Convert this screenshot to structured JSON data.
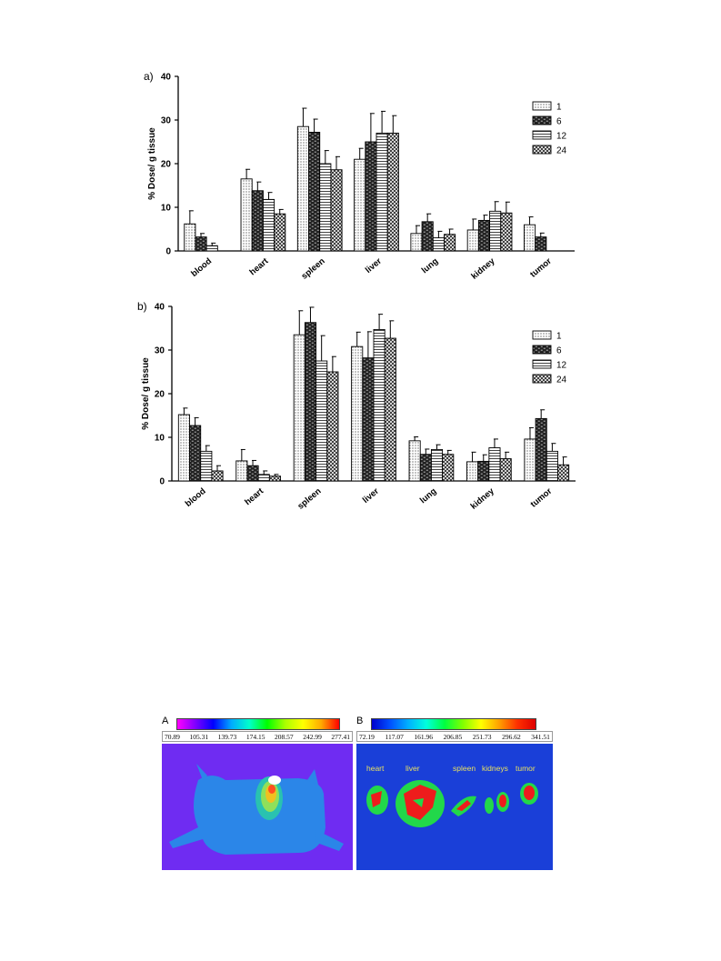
{
  "chart_data": [
    {
      "type": "bar",
      "panel": "a)",
      "ylabel": "% Dose/ g tissue",
      "ylim": [
        0,
        40
      ],
      "yticks": [
        0,
        10,
        20,
        30,
        40
      ],
      "categories": [
        "blood",
        "heart",
        "spleen",
        "liver",
        "lung",
        "kidney",
        "tumor"
      ],
      "legend_position": "top-right",
      "series": [
        {
          "name": "1",
          "pattern": "dots",
          "values": [
            6.2,
            16.5,
            28.5,
            21.0,
            4.0,
            4.8,
            6.0
          ],
          "errors": [
            3.0,
            2.2,
            4.2,
            2.5,
            1.8,
            2.5,
            1.8
          ]
        },
        {
          "name": "6",
          "pattern": "brick",
          "values": [
            3.2,
            13.8,
            27.2,
            25.0,
            6.7,
            7.0,
            3.2
          ],
          "errors": [
            0.8,
            2.0,
            3.0,
            6.5,
            1.8,
            1.2,
            0.9
          ]
        },
        {
          "name": "12",
          "pattern": "hlines",
          "values": [
            1.2,
            11.8,
            20.0,
            27.0,
            3.0,
            9.1,
            null
          ],
          "errors": [
            0.6,
            1.6,
            3.0,
            5.0,
            1.5,
            2.2,
            null
          ]
        },
        {
          "name": "24",
          "pattern": "cross",
          "values": [
            null,
            8.5,
            18.6,
            27.0,
            3.8,
            8.7,
            null
          ],
          "errors": [
            null,
            1.0,
            3.0,
            4.0,
            1.2,
            2.5,
            null
          ]
        }
      ]
    },
    {
      "type": "bar",
      "panel": "b)",
      "ylabel": "% Dose/ g tissue",
      "ylim": [
        0,
        40
      ],
      "yticks": [
        0,
        10,
        20,
        30,
        40
      ],
      "categories": [
        "blood",
        "heart",
        "spleen",
        "liver",
        "lung",
        "kidney",
        "tumor"
      ],
      "legend_position": "top-right",
      "series": [
        {
          "name": "1",
          "pattern": "dots",
          "values": [
            15.2,
            4.6,
            33.5,
            30.8,
            9.2,
            4.4,
            9.6
          ],
          "errors": [
            1.5,
            2.6,
            5.5,
            3.3,
            0.9,
            2.2,
            2.6
          ]
        },
        {
          "name": "6",
          "pattern": "brick",
          "values": [
            12.7,
            3.5,
            36.3,
            28.2,
            6.1,
            4.5,
            14.3
          ],
          "errors": [
            1.8,
            1.2,
            3.5,
            6.0,
            1.2,
            1.5,
            2.0
          ]
        },
        {
          "name": "12",
          "pattern": "hlines",
          "values": [
            6.8,
            1.5,
            27.5,
            34.7,
            7.2,
            7.6,
            6.8
          ],
          "errors": [
            1.3,
            0.8,
            5.8,
            3.5,
            1.1,
            2.0,
            1.8
          ]
        },
        {
          "name": "24",
          "pattern": "cross",
          "values": [
            2.3,
            1.1,
            25.0,
            32.7,
            6.1,
            5.1,
            3.7
          ],
          "errors": [
            1.2,
            0.4,
            3.5,
            4.0,
            0.9,
            1.5,
            1.8
          ]
        }
      ]
    }
  ],
  "imaging": {
    "panel_a": {
      "letter": "A",
      "scale_ticks": [
        "70.89",
        "105.31",
        "139.73",
        "174.15",
        "208.57",
        "242.99",
        "277.41"
      ]
    },
    "panel_b": {
      "letter": "B",
      "scale_ticks": [
        "72.19",
        "117.07",
        "161.96",
        "206.85",
        "251.73",
        "296.62",
        "341.51"
      ],
      "organ_labels": [
        "heart",
        "liver",
        "spleen",
        "kidneys",
        "tumor"
      ]
    },
    "colors": {
      "background_field": "#2f8ff0",
      "panel_b_field": "#1a3fd8"
    }
  }
}
